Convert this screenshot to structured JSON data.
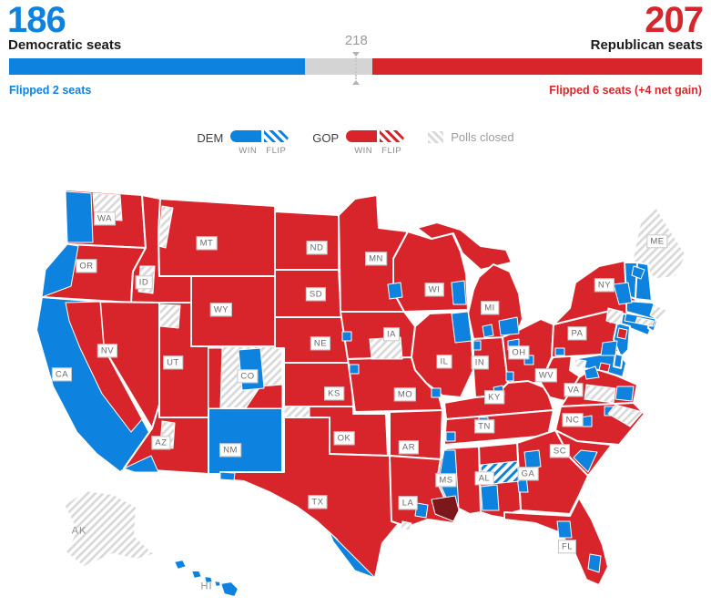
{
  "header": {
    "dem": {
      "count": "186",
      "label": "Democratic seats",
      "flip_note": "Flipped 2 seats"
    },
    "gop": {
      "count": "207",
      "label": "Republican seats",
      "flip_note": "Flipped 6 seats (+4 net gain)"
    },
    "majority_marker": "218"
  },
  "legend": {
    "dem_label": "DEM",
    "gop_label": "GOP",
    "win_label": "WIN",
    "flip_label": "FLIP",
    "polls_closed_label": "Polls closed"
  },
  "colors": {
    "dem": "#0e82df",
    "gop": "#d8252c",
    "gop_dark": "#7c181c",
    "closed": "#d8d8d8",
    "bar_track": "#d4d4d4",
    "text": "#1a1a1a",
    "muted": "#9b9b9b",
    "label_text": "#6b6b6b"
  },
  "map": {
    "states": [
      {
        "code": "WA",
        "result": "gop"
      },
      {
        "code": "OR",
        "result": "gop"
      },
      {
        "code": "CA",
        "result": "dem"
      },
      {
        "code": "NV",
        "result": "gop"
      },
      {
        "code": "ID",
        "result": "gop"
      },
      {
        "code": "MT",
        "result": "gop"
      },
      {
        "code": "WY",
        "result": "gop"
      },
      {
        "code": "UT",
        "result": "gop"
      },
      {
        "code": "CO",
        "result": "closed"
      },
      {
        "code": "AZ",
        "result": "gop"
      },
      {
        "code": "NM",
        "result": "dem"
      },
      {
        "code": "ND",
        "result": "gop"
      },
      {
        "code": "SD",
        "result": "gop"
      },
      {
        "code": "NE",
        "result": "gop"
      },
      {
        "code": "KS",
        "result": "gop"
      },
      {
        "code": "OK",
        "result": "gop"
      },
      {
        "code": "TX",
        "result": "gop"
      },
      {
        "code": "MN",
        "result": "gop"
      },
      {
        "code": "IA",
        "result": "gop"
      },
      {
        "code": "MO",
        "result": "gop"
      },
      {
        "code": "AR",
        "result": "gop"
      },
      {
        "code": "LA",
        "result": "gop"
      },
      {
        "code": "MS",
        "result": "gop"
      },
      {
        "code": "WI",
        "result": "gop"
      },
      {
        "code": "MI",
        "result": "gop"
      },
      {
        "code": "IL",
        "result": "gop"
      },
      {
        "code": "IN",
        "result": "gop"
      },
      {
        "code": "OH",
        "result": "gop"
      },
      {
        "code": "KY",
        "result": "gop"
      },
      {
        "code": "TN",
        "result": "gop"
      },
      {
        "code": "WV",
        "result": "gop"
      },
      {
        "code": "VA",
        "result": "gop"
      },
      {
        "code": "NC",
        "result": "gop"
      },
      {
        "code": "SC",
        "result": "gop"
      },
      {
        "code": "GA",
        "result": "gop"
      },
      {
        "code": "AL",
        "result": "gop"
      },
      {
        "code": "FL",
        "result": "gop"
      },
      {
        "code": "PA",
        "result": "gop"
      },
      {
        "code": "NY",
        "result": "gop"
      },
      {
        "code": "NJ",
        "result": "dem"
      },
      {
        "code": "MD",
        "result": "dem"
      },
      {
        "code": "DE",
        "result": "dem"
      },
      {
        "code": "CT",
        "result": "dem"
      },
      {
        "code": "RI",
        "result": "dem"
      },
      {
        "code": "MA",
        "result": "dem"
      },
      {
        "code": "VT",
        "result": "dem"
      },
      {
        "code": "NH",
        "result": "dem"
      },
      {
        "code": "ME",
        "result": "closed"
      },
      {
        "code": "AK",
        "result": "closed"
      },
      {
        "code": "HI",
        "result": "dem"
      }
    ],
    "labels": [
      {
        "code": "WA"
      },
      {
        "code": "OR"
      },
      {
        "code": "CA"
      },
      {
        "code": "NV"
      },
      {
        "code": "ID"
      },
      {
        "code": "MT"
      },
      {
        "code": "WY"
      },
      {
        "code": "UT"
      },
      {
        "code": "CO"
      },
      {
        "code": "AZ"
      },
      {
        "code": "NM"
      },
      {
        "code": "ND"
      },
      {
        "code": "SD"
      },
      {
        "code": "NE"
      },
      {
        "code": "KS"
      },
      {
        "code": "OK"
      },
      {
        "code": "TX"
      },
      {
        "code": "MN"
      },
      {
        "code": "IA"
      },
      {
        "code": "MO"
      },
      {
        "code": "AR"
      },
      {
        "code": "LA"
      },
      {
        "code": "MS"
      },
      {
        "code": "WI"
      },
      {
        "code": "IL"
      },
      {
        "code": "MI"
      },
      {
        "code": "IN"
      },
      {
        "code": "OH"
      },
      {
        "code": "KY"
      },
      {
        "code": "TN"
      },
      {
        "code": "WV"
      },
      {
        "code": "VA"
      },
      {
        "code": "NC"
      },
      {
        "code": "SC"
      },
      {
        "code": "GA"
      },
      {
        "code": "AL"
      },
      {
        "code": "FL"
      },
      {
        "code": "PA"
      },
      {
        "code": "NY"
      },
      {
        "code": "ME"
      },
      {
        "code": "AK",
        "plain": true
      },
      {
        "code": "HI",
        "plain": true
      }
    ]
  }
}
